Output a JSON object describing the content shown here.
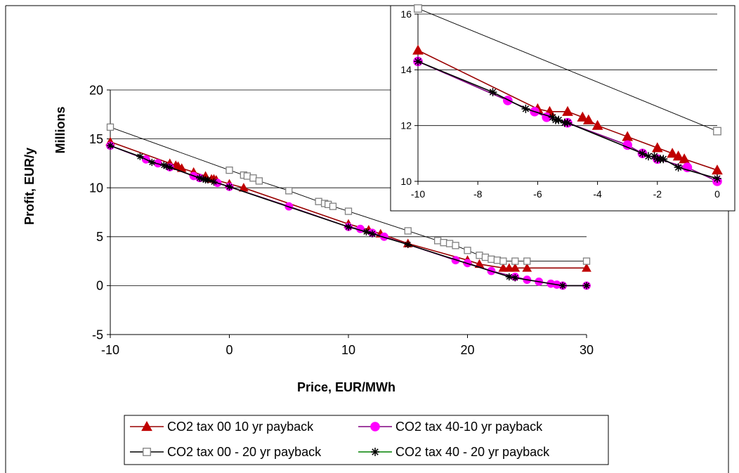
{
  "chart_data": [
    {
      "type": "line",
      "title": "",
      "xlabel": "Price, EUR/MWh",
      "ylabel": "Profit, EUR/y",
      "ylabel_units": "Millions",
      "xlim": [
        -10,
        30
      ],
      "ylim": [
        -5,
        20
      ],
      "xticks": [
        "-10",
        "0",
        "10",
        "20",
        "30"
      ],
      "yticks": [
        "-5",
        "0",
        "5",
        "10",
        "15",
        "20"
      ],
      "grid": "horizontal",
      "legend": "bottom",
      "series": [
        {
          "name": "CO2 tax 00 10 yr payback",
          "color": "#c00000",
          "marker": "triangle",
          "x": [
            -10,
            -5,
            -4.5,
            -4.3,
            -4,
            -3,
            -2,
            -1.5,
            -1.3,
            -1.1,
            0,
            1.2,
            10,
            11.7,
            12.7,
            15,
            20,
            21,
            23,
            23.5,
            24,
            25,
            30
          ],
          "y": [
            14.7,
            12.5,
            12.3,
            12.2,
            12.0,
            11.6,
            11.2,
            10.9,
            10.9,
            10.8,
            10.4,
            10.0,
            6.3,
            5.7,
            5.3,
            4.3,
            2.6,
            2.2,
            1.8,
            1.8,
            1.8,
            1.8,
            1.8
          ]
        },
        {
          "name": "CO2 tax 40-10 yr payback",
          "color": "#ff00ff",
          "marker": "circle",
          "x": [
            -10,
            -7,
            -6,
            -5,
            -3,
            -2.5,
            -1,
            0,
            5,
            10,
            11,
            12,
            13,
            19,
            20,
            22,
            24,
            25,
            26,
            27,
            27.5,
            28,
            30
          ],
          "y": [
            14.3,
            12.9,
            12.5,
            12.1,
            11.2,
            11.0,
            10.5,
            10.1,
            8.1,
            6.0,
            5.8,
            5.4,
            5.0,
            2.6,
            2.3,
            1.5,
            0.9,
            0.6,
            0.4,
            0.2,
            0.1,
            0.0,
            0.0
          ]
        },
        {
          "name": "CO2 tax 00 - 20 yr payback",
          "color": "#808080",
          "marker": "square",
          "x": [
            -10,
            0,
            1.2,
            1.5,
            2,
            2.5,
            5,
            7.5,
            8,
            8.3,
            8.7,
            10,
            15,
            17.5,
            18,
            18.5,
            19,
            20,
            21,
            21.5,
            22,
            22.5,
            23,
            24,
            25,
            30
          ],
          "y": [
            16.2,
            11.8,
            11.3,
            11.2,
            11.0,
            10.7,
            9.7,
            8.6,
            8.4,
            8.3,
            8.1,
            7.6,
            5.6,
            4.6,
            4.4,
            4.3,
            4.1,
            3.6,
            3.1,
            2.9,
            2.7,
            2.6,
            2.5,
            2.5,
            2.5,
            2.5
          ]
        },
        {
          "name": "CO2 tax 40 - 20 yr payback",
          "color": "#008000",
          "marker": "star",
          "x": [
            -10,
            -7.5,
            -6.5,
            -5.5,
            -5.3,
            -5,
            -2.5,
            -2.2,
            -2,
            -1.8,
            -1.3,
            0,
            10,
            11.5,
            12,
            15,
            23.5,
            24,
            28,
            30
          ],
          "y": [
            14.3,
            13.2,
            12.6,
            12.3,
            12.2,
            12.1,
            11.0,
            10.9,
            10.8,
            10.8,
            10.6,
            10.1,
            6.0,
            5.5,
            5.3,
            4.2,
            0.9,
            0.8,
            0.0,
            0.0
          ]
        }
      ]
    },
    {
      "type": "line",
      "title": "",
      "xlabel": "",
      "ylabel": "",
      "xlim": [
        -10,
        0
      ],
      "ylim": [
        10,
        16
      ],
      "xticks": [
        "-10",
        "-8",
        "-6",
        "-4",
        "-2",
        "0"
      ],
      "yticks": [
        "10",
        "12",
        "14",
        "16"
      ],
      "grid": "horizontal",
      "legend": "none",
      "series": [
        {
          "color": "#c00000",
          "marker": "triangle",
          "x": [
            -10,
            -6,
            -5.6,
            -5,
            -4.5,
            -4.3,
            -4,
            -3,
            -2,
            -1.5,
            -1.3,
            -1.1,
            0
          ],
          "y": [
            14.7,
            12.6,
            12.5,
            12.5,
            12.3,
            12.2,
            12.0,
            11.6,
            11.2,
            11.0,
            10.9,
            10.8,
            10.4
          ]
        },
        {
          "color": "#ff00ff",
          "marker": "circle",
          "x": [
            -10,
            -7,
            -6.1,
            -5.7,
            -5,
            -3,
            -2.5,
            -2,
            -1,
            0
          ],
          "y": [
            14.3,
            12.9,
            12.5,
            12.3,
            12.1,
            11.3,
            11.0,
            10.8,
            10.5,
            10.0
          ]
        },
        {
          "color": "#808080",
          "marker": "square",
          "x": [
            -10,
            0
          ],
          "y": [
            16.2,
            11.8
          ]
        },
        {
          "color": "#000000",
          "marker": "star",
          "x": [
            -10,
            -7.5,
            -6.4,
            -5.5,
            -5.4,
            -5.3,
            -5.1,
            -5,
            -2.5,
            -2.3,
            -2.1,
            -2,
            -1.9,
            -1.8,
            -1.3,
            0
          ],
          "y": [
            14.3,
            13.2,
            12.6,
            12.3,
            12.2,
            12.2,
            12.1,
            12.1,
            11.0,
            10.9,
            10.9,
            10.8,
            10.8,
            10.8,
            10.5,
            10.1
          ]
        }
      ]
    }
  ]
}
